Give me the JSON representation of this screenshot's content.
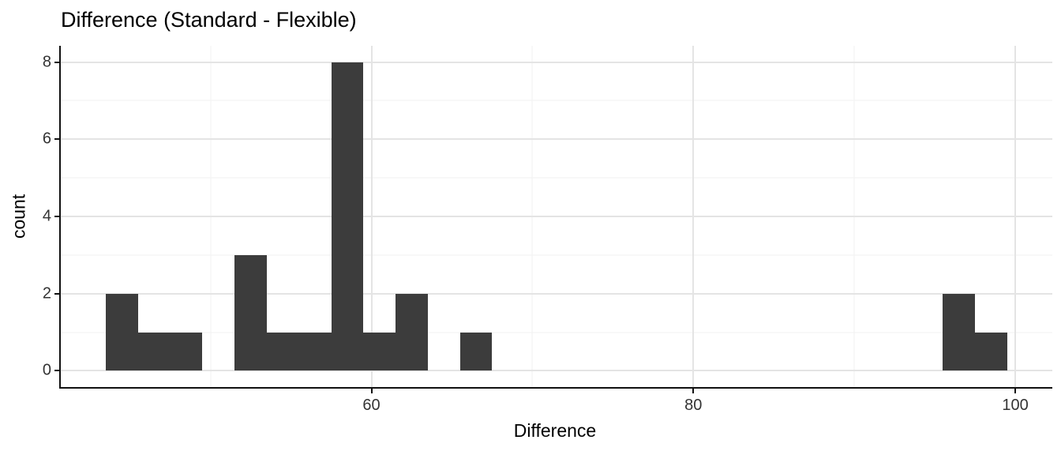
{
  "chart_data": {
    "type": "bar",
    "subtype": "histogram",
    "title": "Difference (Standard - Flexible)",
    "xlabel": "Difference",
    "ylabel": "count",
    "binwidth": 2,
    "bins": [
      {
        "x0": 43.5,
        "x1": 45.5,
        "count": 2
      },
      {
        "x0": 45.5,
        "x1": 47.5,
        "count": 1
      },
      {
        "x0": 47.5,
        "x1": 49.5,
        "count": 1
      },
      {
        "x0": 51.5,
        "x1": 53.5,
        "count": 3
      },
      {
        "x0": 53.5,
        "x1": 55.5,
        "count": 1
      },
      {
        "x0": 55.5,
        "x1": 57.5,
        "count": 1
      },
      {
        "x0": 57.5,
        "x1": 59.5,
        "count": 8
      },
      {
        "x0": 59.5,
        "x1": 61.5,
        "count": 1
      },
      {
        "x0": 61.5,
        "x1": 63.5,
        "count": 2
      },
      {
        "x0": 65.5,
        "x1": 67.5,
        "count": 1
      },
      {
        "x0": 95.5,
        "x1": 97.5,
        "count": 2
      },
      {
        "x0": 97.5,
        "x1": 99.5,
        "count": 1
      }
    ],
    "x_ticks": [
      60,
      80,
      100
    ],
    "y_ticks": [
      0,
      2,
      4,
      6,
      8
    ],
    "x_minor_gridlines": [
      50,
      70,
      90
    ],
    "y_minor_gridlines": [
      1,
      3,
      5,
      7
    ],
    "xlim": [
      40.7,
      102.3
    ],
    "ylim": [
      -0.42,
      8.42
    ],
    "grid": "on",
    "legend": "none",
    "bar_color": "#3c3c3c",
    "grid_major_color": "#e4e4e4",
    "grid_minor_color": "#f2f2f2",
    "axis_color": "#111111",
    "tick_label_color": "#333333",
    "background_color": "#ffffff"
  }
}
